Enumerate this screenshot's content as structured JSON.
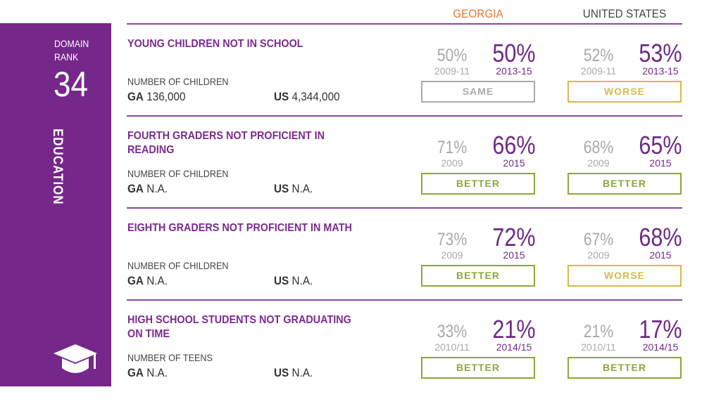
{
  "sidebar": {
    "domain_rank_label_1": "DOMAIN",
    "domain_rank_label_2": "RANK",
    "rank": "34",
    "domain": "EDUCATION",
    "icon": "graduation-cap-icon"
  },
  "headers": {
    "georgia": "GEORGIA",
    "us": "UNITED STATES"
  },
  "colors": {
    "purple": "#76278a",
    "georgia": "#e07b39",
    "better": "#8aa83a",
    "worse": "#d9b84a",
    "same": "#aaaaaa"
  },
  "rows": [
    {
      "title": "YOUNG CHILDREN NOT IN SCHOOL",
      "count_label": "NUMBER OF CHILDREN",
      "ga_prefix": "GA",
      "ga_value": "136,000",
      "us_prefix": "US",
      "us_value": "4,344,000",
      "ga": {
        "old": "50%",
        "old_year": "2009-11",
        "new": "50%",
        "new_year": "2013-15",
        "trend": "SAME"
      },
      "us": {
        "old": "52%",
        "old_year": "2009-11",
        "new": "53%",
        "new_year": "2013-15",
        "trend": "WORSE"
      }
    },
    {
      "title": "FOURTH GRADERS NOT PROFICIENT IN READING",
      "count_label": "NUMBER OF CHILDREN",
      "ga_prefix": "GA",
      "ga_value": "N.A.",
      "us_prefix": "US",
      "us_value": "N.A.",
      "ga": {
        "old": "71%",
        "old_year": "2009",
        "new": "66%",
        "new_year": "2015",
        "trend": "BETTER"
      },
      "us": {
        "old": "68%",
        "old_year": "2009",
        "new": "65%",
        "new_year": "2015",
        "trend": "BETTER"
      }
    },
    {
      "title": "EIGHTH GRADERS NOT PROFICIENT IN MATH",
      "count_label": "NUMBER OF CHILDREN",
      "ga_prefix": "GA",
      "ga_value": "N.A.",
      "us_prefix": "US",
      "us_value": "N.A.",
      "ga": {
        "old": "73%",
        "old_year": "2009",
        "new": "72%",
        "new_year": "2015",
        "trend": "BETTER"
      },
      "us": {
        "old": "67%",
        "old_year": "2009",
        "new": "68%",
        "new_year": "2015",
        "trend": "WORSE"
      }
    },
    {
      "title": "HIGH SCHOOL STUDENTS NOT GRADUATING ON TIME",
      "count_label": "NUMBER OF TEENS",
      "ga_prefix": "GA",
      "ga_value": "N.A.",
      "us_prefix": "US",
      "us_value": "N.A.",
      "ga": {
        "old": "33%",
        "old_year": "2010/11",
        "new": "21%",
        "new_year": "2014/15",
        "trend": "BETTER"
      },
      "us": {
        "old": "21%",
        "old_year": "2010/11",
        "new": "17%",
        "new_year": "2014/15",
        "trend": "BETTER"
      }
    }
  ]
}
